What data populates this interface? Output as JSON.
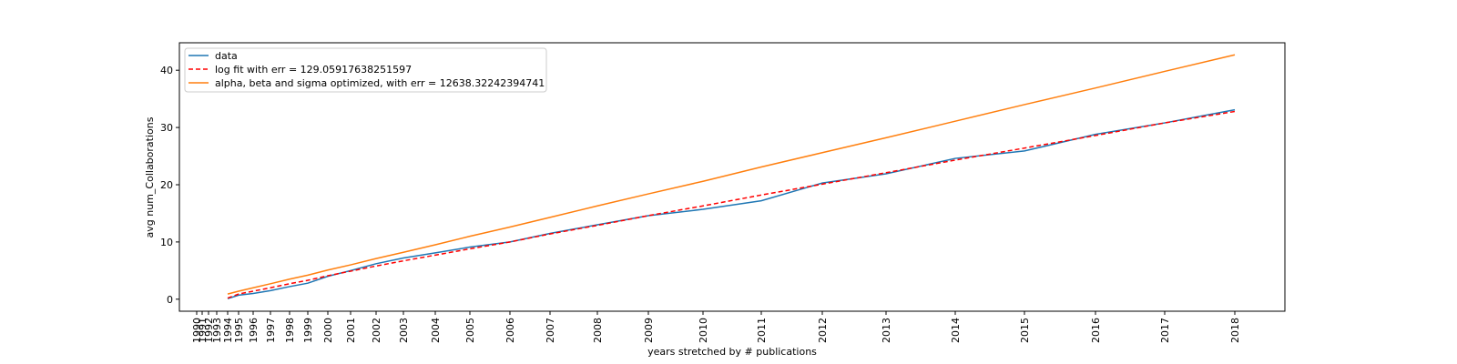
{
  "chart_data": {
    "type": "line",
    "x_label": "years stretched by # publications",
    "y_label": "avg num_Collaborations",
    "x": [
      34,
      46,
      62,
      81,
      102,
      122,
      144,
      169,
      197,
      227,
      262,
      300,
      344,
      388,
      440,
      496,
      556,
      620,
      687,
      757,
      833,
      909,
      987,
      1063,
      1140
    ],
    "series": [
      {
        "name": "data",
        "color": "#1f77b4",
        "dash": "solid",
        "values": [
          0.1,
          0.7,
          1.0,
          1.5,
          2.2,
          2.8,
          4.0,
          5.0,
          6.2,
          7.2,
          8.1,
          9.1,
          10.0,
          11.5,
          13.0,
          14.6,
          15.7,
          17.2,
          20.3,
          21.9,
          24.6,
          25.9,
          28.8,
          30.8,
          33.1
        ]
      },
      {
        "name": "log fit with err = 129.05917638251597",
        "color": "#ff0000",
        "dash": "dashed",
        "values": [
          0.2,
          0.9,
          1.4,
          2.0,
          2.7,
          3.3,
          4.1,
          4.9,
          5.8,
          6.7,
          7.7,
          8.8,
          10.0,
          11.4,
          12.9,
          14.6,
          16.3,
          18.2,
          20.1,
          22.1,
          24.3,
          26.4,
          28.6,
          30.8,
          32.8
        ]
      },
      {
        "name": "alpha, beta and sigma optimized, with err = 12638.32242394741",
        "color": "#ff7f0e",
        "dash": "solid",
        "values": [
          0.9,
          1.4,
          2.0,
          2.7,
          3.5,
          4.2,
          5.1,
          6.0,
          7.1,
          8.2,
          9.5,
          11.0,
          12.6,
          14.3,
          16.3,
          18.4,
          20.6,
          23.1,
          25.6,
          28.2,
          31.1,
          34.0,
          36.9,
          39.8,
          42.7
        ]
      }
    ],
    "xlim": [
      -19,
      1195
    ],
    "xticks": [
      {
        "value": 0,
        "label": "1990"
      },
      {
        "value": 6,
        "label": "1991"
      },
      {
        "value": 13,
        "label": "1992"
      },
      {
        "value": 22,
        "label": "1993"
      },
      {
        "value": 34,
        "label": "1994"
      },
      {
        "value": 46,
        "label": "1995"
      },
      {
        "value": 62,
        "label": "1996"
      },
      {
        "value": 81,
        "label": "1997"
      },
      {
        "value": 102,
        "label": "1998"
      },
      {
        "value": 122,
        "label": "1999"
      },
      {
        "value": 144,
        "label": "2000"
      },
      {
        "value": 169,
        "label": "2001"
      },
      {
        "value": 197,
        "label": "2002"
      },
      {
        "value": 227,
        "label": "2003"
      },
      {
        "value": 262,
        "label": "2004"
      },
      {
        "value": 300,
        "label": "2005"
      },
      {
        "value": 344,
        "label": "2006"
      },
      {
        "value": 388,
        "label": "2007"
      },
      {
        "value": 440,
        "label": "2008"
      },
      {
        "value": 496,
        "label": "2009"
      },
      {
        "value": 556,
        "label": "2010"
      },
      {
        "value": 620,
        "label": "2011"
      },
      {
        "value": 687,
        "label": "2012"
      },
      {
        "value": 757,
        "label": "2013"
      },
      {
        "value": 833,
        "label": "2014"
      },
      {
        "value": 909,
        "label": "2015"
      },
      {
        "value": 987,
        "label": "2016"
      },
      {
        "value": 1063,
        "label": "2017"
      },
      {
        "value": 1140,
        "label": "2018"
      }
    ],
    "ylim": [
      -2.1,
      44.8
    ],
    "yticks": [
      0,
      10,
      20,
      30,
      40
    ],
    "legend": "upper left"
  }
}
